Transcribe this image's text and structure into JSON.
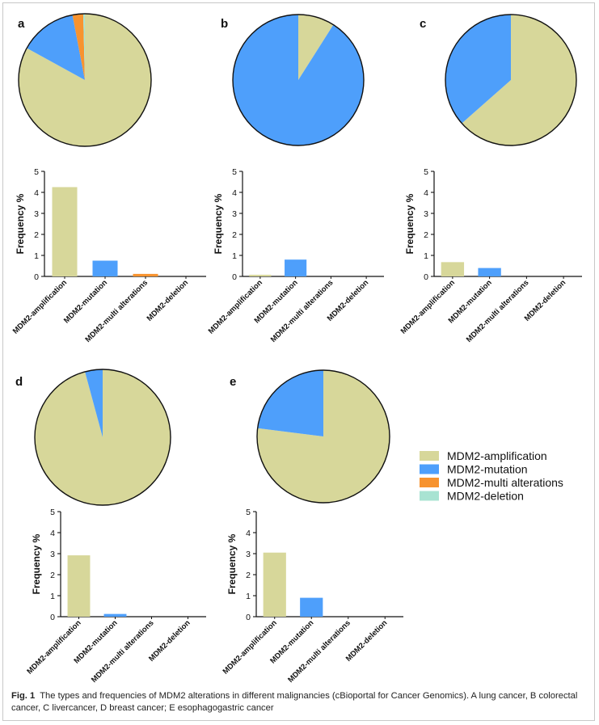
{
  "chart_data": [
    {
      "type": "pie",
      "panel": "a",
      "categories": [
        "MDM2-amplification",
        "MDM2-mutation",
        "MDM2-multi alterations",
        "MDM2-deletion"
      ],
      "values": [
        83,
        14,
        2.6,
        0.4
      ]
    },
    {
      "type": "bar",
      "panel": "a",
      "categories": [
        "MDM2-amplification",
        "MDM2-mutation",
        "MDM2-multi alterations",
        "MDM2-deletion"
      ],
      "values": [
        4.25,
        0.75,
        0.12,
        0
      ],
      "ylabel": "Frequency %",
      "ylim": [
        0,
        5
      ],
      "yticks": [
        "0",
        "1",
        "2",
        "3",
        "4",
        "5"
      ]
    },
    {
      "type": "pie",
      "panel": "b",
      "categories": [
        "MDM2-amplification",
        "MDM2-mutation",
        "MDM2-multi alterations",
        "MDM2-deletion"
      ],
      "values": [
        9,
        91,
        0,
        0
      ]
    },
    {
      "type": "bar",
      "panel": "b",
      "categories": [
        "MDM2-amplification",
        "MDM2-mutation",
        "MDM2-multi alterations",
        "MDM2-deletion"
      ],
      "values": [
        0.08,
        0.8,
        0,
        0
      ],
      "ylabel": "Frequency %",
      "ylim": [
        0,
        5
      ],
      "yticks": [
        "0",
        "1",
        "2",
        "3",
        "4",
        "5"
      ]
    },
    {
      "type": "pie",
      "panel": "c",
      "categories": [
        "MDM2-amplification",
        "MDM2-mutation",
        "MDM2-multi alterations",
        "MDM2-deletion"
      ],
      "values": [
        63.5,
        36.5,
        0,
        0
      ]
    },
    {
      "type": "bar",
      "panel": "c",
      "categories": [
        "MDM2-amplification",
        "MDM2-mutation",
        "MDM2-multi alterations",
        "MDM2-deletion"
      ],
      "values": [
        0.68,
        0.4,
        0,
        0
      ],
      "ylabel": "Frequency %",
      "ylim": [
        0,
        5
      ],
      "yticks": [
        "0",
        "1",
        "2",
        "3",
        "4",
        "5"
      ]
    },
    {
      "type": "pie",
      "panel": "d",
      "categories": [
        "MDM2-amplification",
        "MDM2-mutation",
        "MDM2-multi alterations",
        "MDM2-deletion"
      ],
      "values": [
        95.8,
        4.2,
        0,
        0
      ]
    },
    {
      "type": "bar",
      "panel": "d",
      "categories": [
        "MDM2-amplification",
        "MDM2-mutation",
        "MDM2-multi alterations",
        "MDM2-deletion"
      ],
      "values": [
        2.92,
        0.13,
        0,
        0
      ],
      "ylabel": "Frequency %",
      "ylim": [
        0,
        5
      ],
      "yticks": [
        "0",
        "1",
        "2",
        "3",
        "4",
        "5"
      ]
    },
    {
      "type": "pie",
      "panel": "e",
      "categories": [
        "MDM2-amplification",
        "MDM2-mutation",
        "MDM2-multi alterations",
        "MDM2-deletion"
      ],
      "values": [
        77,
        23,
        0,
        0
      ]
    },
    {
      "type": "bar",
      "panel": "e",
      "categories": [
        "MDM2-amplification",
        "MDM2-mutation",
        "MDM2-multi alterations",
        "MDM2-deletion"
      ],
      "values": [
        3.05,
        0.9,
        0,
        0
      ],
      "ylabel": "Frequency %",
      "ylim": [
        0,
        5
      ],
      "yticks": [
        "0",
        "1",
        "2",
        "3",
        "4",
        "5"
      ]
    }
  ],
  "legend": {
    "entries": [
      "MDM2-amplification",
      "MDM2-mutation",
      "MDM2-multi alterations",
      "MDM2-deletion"
    ],
    "colors": [
      "#d7d79a",
      "#4e9ffb",
      "#f7932f",
      "#a8e3d2"
    ]
  },
  "caption": {
    "label": "Fig. 1",
    "text": "The types and frequencies of MDM2 alterations in different malignancies (cBioportal for Cancer Genomics). A lung cancer, B colorectal cancer, C livercancer, D breast cancer; E esophagogastric cancer"
  }
}
